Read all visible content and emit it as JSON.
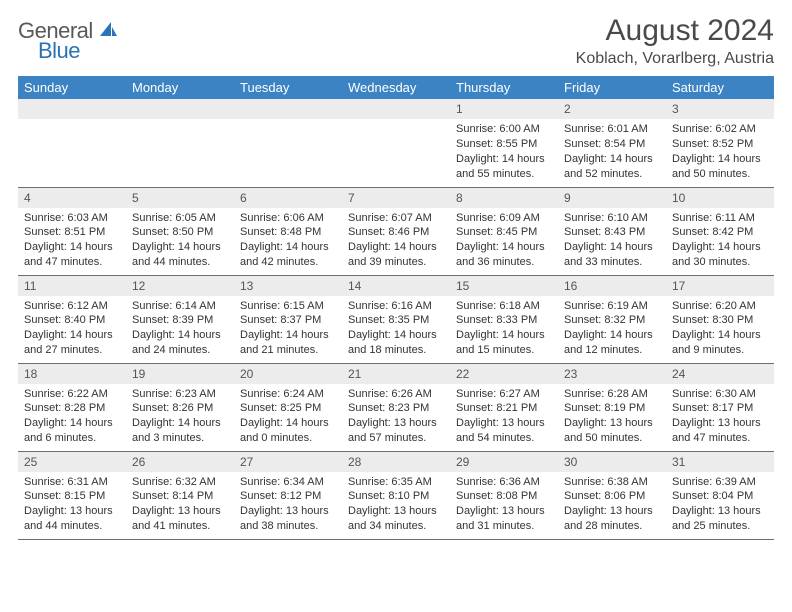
{
  "logo": {
    "general": "General",
    "blue": "Blue"
  },
  "title": {
    "month": "August 2024",
    "location": "Koblach, Vorarlberg, Austria"
  },
  "colors": {
    "header_bg": "#3c83c4",
    "header_fg": "#ffffff",
    "daynum_bg": "#ececec",
    "daynum_fg": "#555555",
    "body_text": "#333333",
    "rule": "#6f6f6f",
    "logo_gray": "#595959",
    "logo_blue": "#2b73b8",
    "title_color": "#4a4a4a"
  },
  "weekdays": [
    "Sunday",
    "Monday",
    "Tuesday",
    "Wednesday",
    "Thursday",
    "Friday",
    "Saturday"
  ],
  "weeks": [
    [
      null,
      null,
      null,
      null,
      {
        "d": "1",
        "sr": "Sunrise: 6:00 AM",
        "ss": "Sunset: 8:55 PM",
        "dl1": "Daylight: 14 hours",
        "dl2": "and 55 minutes."
      },
      {
        "d": "2",
        "sr": "Sunrise: 6:01 AM",
        "ss": "Sunset: 8:54 PM",
        "dl1": "Daylight: 14 hours",
        "dl2": "and 52 minutes."
      },
      {
        "d": "3",
        "sr": "Sunrise: 6:02 AM",
        "ss": "Sunset: 8:52 PM",
        "dl1": "Daylight: 14 hours",
        "dl2": "and 50 minutes."
      }
    ],
    [
      {
        "d": "4",
        "sr": "Sunrise: 6:03 AM",
        "ss": "Sunset: 8:51 PM",
        "dl1": "Daylight: 14 hours",
        "dl2": "and 47 minutes."
      },
      {
        "d": "5",
        "sr": "Sunrise: 6:05 AM",
        "ss": "Sunset: 8:50 PM",
        "dl1": "Daylight: 14 hours",
        "dl2": "and 44 minutes."
      },
      {
        "d": "6",
        "sr": "Sunrise: 6:06 AM",
        "ss": "Sunset: 8:48 PM",
        "dl1": "Daylight: 14 hours",
        "dl2": "and 42 minutes."
      },
      {
        "d": "7",
        "sr": "Sunrise: 6:07 AM",
        "ss": "Sunset: 8:46 PM",
        "dl1": "Daylight: 14 hours",
        "dl2": "and 39 minutes."
      },
      {
        "d": "8",
        "sr": "Sunrise: 6:09 AM",
        "ss": "Sunset: 8:45 PM",
        "dl1": "Daylight: 14 hours",
        "dl2": "and 36 minutes."
      },
      {
        "d": "9",
        "sr": "Sunrise: 6:10 AM",
        "ss": "Sunset: 8:43 PM",
        "dl1": "Daylight: 14 hours",
        "dl2": "and 33 minutes."
      },
      {
        "d": "10",
        "sr": "Sunrise: 6:11 AM",
        "ss": "Sunset: 8:42 PM",
        "dl1": "Daylight: 14 hours",
        "dl2": "and 30 minutes."
      }
    ],
    [
      {
        "d": "11",
        "sr": "Sunrise: 6:12 AM",
        "ss": "Sunset: 8:40 PM",
        "dl1": "Daylight: 14 hours",
        "dl2": "and 27 minutes."
      },
      {
        "d": "12",
        "sr": "Sunrise: 6:14 AM",
        "ss": "Sunset: 8:39 PM",
        "dl1": "Daylight: 14 hours",
        "dl2": "and 24 minutes."
      },
      {
        "d": "13",
        "sr": "Sunrise: 6:15 AM",
        "ss": "Sunset: 8:37 PM",
        "dl1": "Daylight: 14 hours",
        "dl2": "and 21 minutes."
      },
      {
        "d": "14",
        "sr": "Sunrise: 6:16 AM",
        "ss": "Sunset: 8:35 PM",
        "dl1": "Daylight: 14 hours",
        "dl2": "and 18 minutes."
      },
      {
        "d": "15",
        "sr": "Sunrise: 6:18 AM",
        "ss": "Sunset: 8:33 PM",
        "dl1": "Daylight: 14 hours",
        "dl2": "and 15 minutes."
      },
      {
        "d": "16",
        "sr": "Sunrise: 6:19 AM",
        "ss": "Sunset: 8:32 PM",
        "dl1": "Daylight: 14 hours",
        "dl2": "and 12 minutes."
      },
      {
        "d": "17",
        "sr": "Sunrise: 6:20 AM",
        "ss": "Sunset: 8:30 PM",
        "dl1": "Daylight: 14 hours",
        "dl2": "and 9 minutes."
      }
    ],
    [
      {
        "d": "18",
        "sr": "Sunrise: 6:22 AM",
        "ss": "Sunset: 8:28 PM",
        "dl1": "Daylight: 14 hours",
        "dl2": "and 6 minutes."
      },
      {
        "d": "19",
        "sr": "Sunrise: 6:23 AM",
        "ss": "Sunset: 8:26 PM",
        "dl1": "Daylight: 14 hours",
        "dl2": "and 3 minutes."
      },
      {
        "d": "20",
        "sr": "Sunrise: 6:24 AM",
        "ss": "Sunset: 8:25 PM",
        "dl1": "Daylight: 14 hours",
        "dl2": "and 0 minutes."
      },
      {
        "d": "21",
        "sr": "Sunrise: 6:26 AM",
        "ss": "Sunset: 8:23 PM",
        "dl1": "Daylight: 13 hours",
        "dl2": "and 57 minutes."
      },
      {
        "d": "22",
        "sr": "Sunrise: 6:27 AM",
        "ss": "Sunset: 8:21 PM",
        "dl1": "Daylight: 13 hours",
        "dl2": "and 54 minutes."
      },
      {
        "d": "23",
        "sr": "Sunrise: 6:28 AM",
        "ss": "Sunset: 8:19 PM",
        "dl1": "Daylight: 13 hours",
        "dl2": "and 50 minutes."
      },
      {
        "d": "24",
        "sr": "Sunrise: 6:30 AM",
        "ss": "Sunset: 8:17 PM",
        "dl1": "Daylight: 13 hours",
        "dl2": "and 47 minutes."
      }
    ],
    [
      {
        "d": "25",
        "sr": "Sunrise: 6:31 AM",
        "ss": "Sunset: 8:15 PM",
        "dl1": "Daylight: 13 hours",
        "dl2": "and 44 minutes."
      },
      {
        "d": "26",
        "sr": "Sunrise: 6:32 AM",
        "ss": "Sunset: 8:14 PM",
        "dl1": "Daylight: 13 hours",
        "dl2": "and 41 minutes."
      },
      {
        "d": "27",
        "sr": "Sunrise: 6:34 AM",
        "ss": "Sunset: 8:12 PM",
        "dl1": "Daylight: 13 hours",
        "dl2": "and 38 minutes."
      },
      {
        "d": "28",
        "sr": "Sunrise: 6:35 AM",
        "ss": "Sunset: 8:10 PM",
        "dl1": "Daylight: 13 hours",
        "dl2": "and 34 minutes."
      },
      {
        "d": "29",
        "sr": "Sunrise: 6:36 AM",
        "ss": "Sunset: 8:08 PM",
        "dl1": "Daylight: 13 hours",
        "dl2": "and 31 minutes."
      },
      {
        "d": "30",
        "sr": "Sunrise: 6:38 AM",
        "ss": "Sunset: 8:06 PM",
        "dl1": "Daylight: 13 hours",
        "dl2": "and 28 minutes."
      },
      {
        "d": "31",
        "sr": "Sunrise: 6:39 AM",
        "ss": "Sunset: 8:04 PM",
        "dl1": "Daylight: 13 hours",
        "dl2": "and 25 minutes."
      }
    ]
  ]
}
